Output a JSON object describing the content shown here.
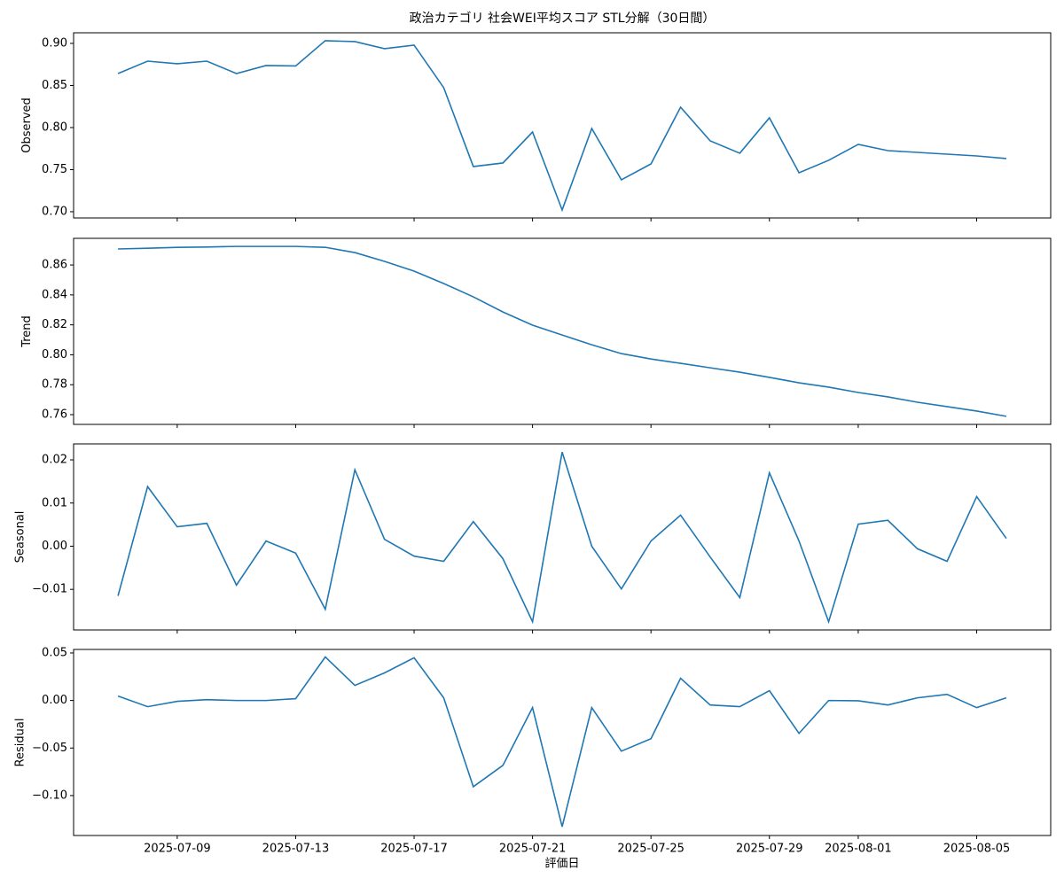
{
  "chart_data": [
    {
      "type": "line",
      "title": "政治カテゴリ 社会WEI平均スコア STL分解（30日間）",
      "ylabel": "Observed",
      "color": "#1f77b4",
      "x": [
        "2025-07-07",
        "2025-07-08",
        "2025-07-09",
        "2025-07-10",
        "2025-07-11",
        "2025-07-12",
        "2025-07-13",
        "2025-07-14",
        "2025-07-15",
        "2025-07-16",
        "2025-07-17",
        "2025-07-18",
        "2025-07-19",
        "2025-07-20",
        "2025-07-21",
        "2025-07-22",
        "2025-07-23",
        "2025-07-24",
        "2025-07-25",
        "2025-07-26",
        "2025-07-27",
        "2025-07-28",
        "2025-07-29",
        "2025-07-30",
        "2025-07-31",
        "2025-08-01",
        "2025-08-02",
        "2025-08-03",
        "2025-08-04",
        "2025-08-05",
        "2025-08-06"
      ],
      "values": [
        0.8642,
        0.8789,
        0.8758,
        0.8789,
        0.8642,
        0.8737,
        0.8732,
        0.9032,
        0.9021,
        0.8937,
        0.8979,
        0.8474,
        0.7537,
        0.7579,
        0.7947,
        0.7021,
        0.7989,
        0.7379,
        0.7568,
        0.8242,
        0.7842,
        0.7695,
        0.8116,
        0.7463,
        0.7611,
        0.78,
        0.7726,
        0.7705,
        0.7684,
        0.7663,
        0.7632
      ],
      "xlim": [
        "2025-07-05T12:00",
        "2025-08-07T12:00"
      ],
      "xticks": [
        "2025-07-09",
        "2025-07-13",
        "2025-07-17",
        "2025-07-21",
        "2025-07-25",
        "2025-07-29",
        "2025-08-01",
        "2025-08-05"
      ],
      "ylim": [
        0.6926,
        0.9126
      ],
      "yticks": [
        {
          "value": 0.7,
          "label": "0.70"
        },
        0.75,
        {
          "value": 0.8,
          "label": "0.80"
        },
        0.85,
        {
          "value": 0.9,
          "label": "0.90"
        }
      ]
    },
    {
      "type": "line",
      "ylabel": "Trend",
      "color": "#1f77b4",
      "x": [
        "2025-07-07",
        "2025-07-08",
        "2025-07-09",
        "2025-07-10",
        "2025-07-11",
        "2025-07-12",
        "2025-07-13",
        "2025-07-14",
        "2025-07-15",
        "2025-07-16",
        "2025-07-17",
        "2025-07-18",
        "2025-07-19",
        "2025-07-20",
        "2025-07-21",
        "2025-07-22",
        "2025-07-23",
        "2025-07-24",
        "2025-07-25",
        "2025-07-26",
        "2025-07-27",
        "2025-07-28",
        "2025-07-29",
        "2025-07-30",
        "2025-07-31",
        "2025-08-01",
        "2025-08-02",
        "2025-08-03",
        "2025-08-04",
        "2025-08-05",
        "2025-08-06"
      ],
      "values": [
        0.8707,
        0.8712,
        0.8718,
        0.872,
        0.8724,
        0.8724,
        0.8724,
        0.8718,
        0.8683,
        0.8624,
        0.8559,
        0.8476,
        0.8387,
        0.8286,
        0.8198,
        0.8132,
        0.8067,
        0.8008,
        0.7972,
        0.7943,
        0.7913,
        0.7884,
        0.7849,
        0.7813,
        0.7784,
        0.7748,
        0.7719,
        0.7683,
        0.7654,
        0.7624,
        0.7589
      ],
      "xlim": [
        "2025-07-05T12:00",
        "2025-08-07T12:00"
      ],
      "xticks": [
        "2025-07-09",
        "2025-07-13",
        "2025-07-17",
        "2025-07-21",
        "2025-07-25",
        "2025-07-29",
        "2025-08-01",
        "2025-08-05"
      ],
      "ylim": [
        0.7535,
        0.8778
      ],
      "yticks": [
        0.76,
        0.78,
        {
          "value": 0.8,
          "label": "0.80"
        },
        0.82,
        0.84,
        0.86
      ]
    },
    {
      "type": "line",
      "ylabel": "Seasonal",
      "color": "#1f77b4",
      "x": [
        "2025-07-07",
        "2025-07-08",
        "2025-07-09",
        "2025-07-10",
        "2025-07-11",
        "2025-07-12",
        "2025-07-13",
        "2025-07-14",
        "2025-07-15",
        "2025-07-16",
        "2025-07-17",
        "2025-07-18",
        "2025-07-19",
        "2025-07-20",
        "2025-07-21",
        "2025-07-22",
        "2025-07-23",
        "2025-07-24",
        "2025-07-25",
        "2025-07-26",
        "2025-07-27",
        "2025-07-28",
        "2025-07-29",
        "2025-07-30",
        "2025-07-31",
        "2025-08-01",
        "2025-08-02",
        "2025-08-03",
        "2025-08-04",
        "2025-08-05",
        "2025-08-06"
      ],
      "values": [
        -0.0115,
        0.0138,
        0.0045,
        0.0053,
        -0.009,
        0.0012,
        -0.0016,
        -0.0146,
        0.0177,
        0.0016,
        -0.0023,
        -0.0035,
        0.0057,
        -0.0029,
        -0.0175,
        0.0218,
        0.0,
        -0.0099,
        0.0012,
        0.0072,
        -0.0025,
        -0.0119,
        0.017,
        0.0012,
        -0.0175,
        0.0051,
        0.006,
        -0.0006,
        -0.0035,
        0.0115,
        0.0018
      ],
      "xlim": [
        "2025-07-05T12:00",
        "2025-08-07T12:00"
      ],
      "xticks": [
        "2025-07-09",
        "2025-07-13",
        "2025-07-17",
        "2025-07-21",
        "2025-07-25",
        "2025-07-29",
        "2025-08-01",
        "2025-08-05"
      ],
      "ylim": [
        -0.0194,
        0.0237
      ],
      "yticks": [
        {
          "value": -0.01,
          "label": "−0.01"
        },
        {
          "value": 0,
          "label": "0.00"
        },
        0.01,
        0.02
      ]
    },
    {
      "type": "line",
      "ylabel": "Residual",
      "xlabel": "評価日",
      "color": "#1f77b4",
      "x": [
        "2025-07-07",
        "2025-07-08",
        "2025-07-09",
        "2025-07-10",
        "2025-07-11",
        "2025-07-12",
        "2025-07-13",
        "2025-07-14",
        "2025-07-15",
        "2025-07-16",
        "2025-07-17",
        "2025-07-18",
        "2025-07-19",
        "2025-07-20",
        "2025-07-21",
        "2025-07-22",
        "2025-07-23",
        "2025-07-24",
        "2025-07-25",
        "2025-07-26",
        "2025-07-27",
        "2025-07-28",
        "2025-07-29",
        "2025-07-30",
        "2025-07-31",
        "2025-08-01",
        "2025-08-02",
        "2025-08-03",
        "2025-08-04",
        "2025-08-05",
        "2025-08-06"
      ],
      "values": [
        0.0047,
        -0.0065,
        -0.0009,
        0.0009,
        0,
        0,
        0.0019,
        0.0458,
        0.0159,
        0.029,
        0.0449,
        0.0028,
        -0.0907,
        -0.0682,
        -0.0075,
        -0.1327,
        -0.0075,
        -0.0533,
        -0.0402,
        0.0234,
        -0.0047,
        -0.0065,
        0.0103,
        -0.0346,
        0,
        -0.0003,
        -0.0047,
        0.0028,
        0.0065,
        -0.0075,
        0.0028
      ],
      "xlim": [
        "2025-07-05T12:00",
        "2025-08-07T12:00"
      ],
      "xticks": [
        "2025-07-09",
        "2025-07-13",
        "2025-07-17",
        "2025-07-21",
        "2025-07-25",
        "2025-07-29",
        "2025-08-01",
        "2025-08-05"
      ],
      "ylim": [
        -0.142,
        0.0537
      ],
      "yticks": [
        {
          "value": -0.1,
          "label": "−0.10"
        },
        {
          "value": -0.05,
          "label": "−0.05"
        },
        {
          "value": 0,
          "label": "0.00"
        },
        0.05
      ]
    }
  ]
}
